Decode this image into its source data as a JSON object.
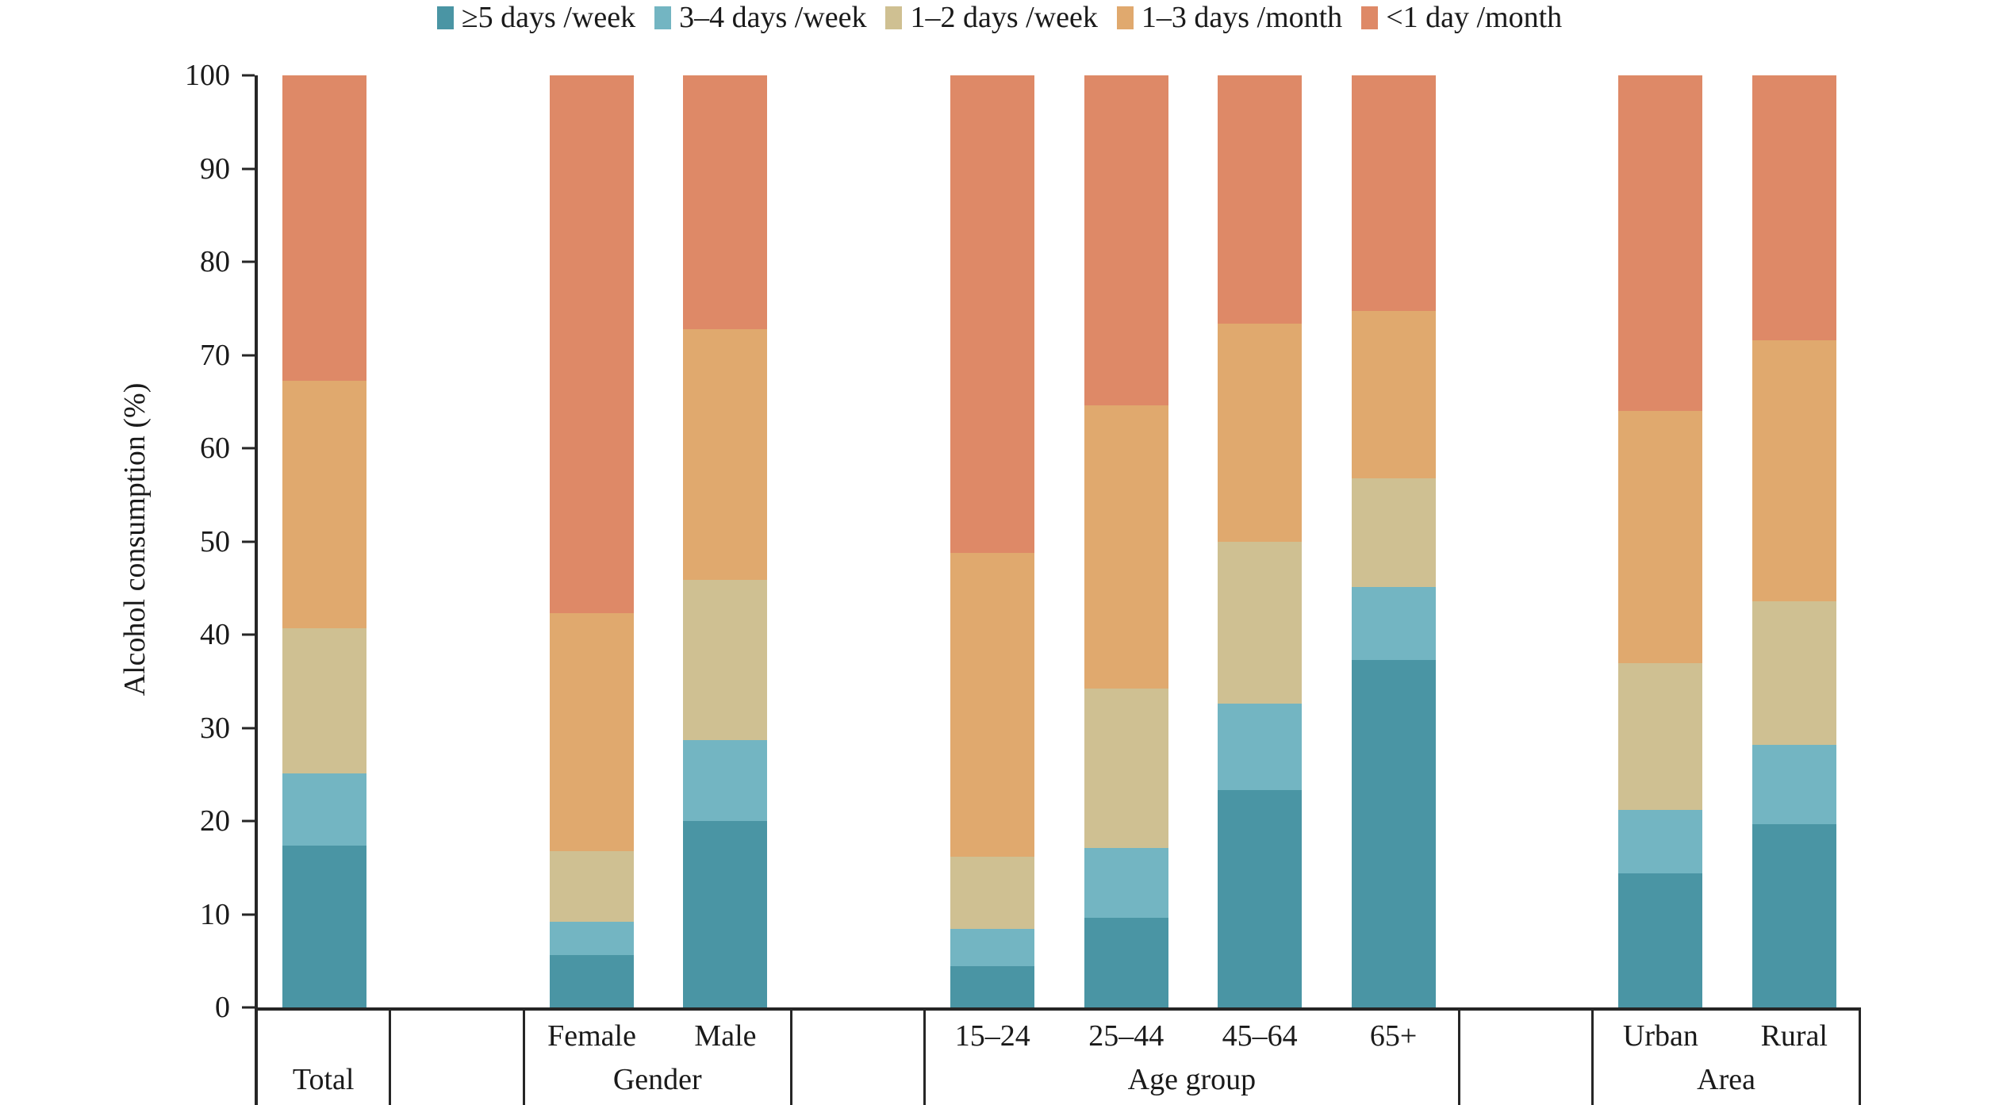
{
  "chart_data": {
    "type": "bar",
    "stacked": true,
    "title": "",
    "xlabel": "",
    "ylabel": "Alcohol consumption (%)",
    "ylim": [
      0,
      100
    ],
    "yticks": [
      0,
      10,
      20,
      30,
      40,
      50,
      60,
      70,
      80,
      90,
      100
    ],
    "grid": false,
    "legend_position": "top",
    "categories": [
      "Total",
      "Female",
      "Male",
      "15–24",
      "25–44",
      "45–64",
      "65+",
      "Urban",
      "Rural"
    ],
    "axis_groups": [
      {
        "label": "Total",
        "bar_labels": [
          ""
        ]
      },
      {
        "label": "Gender",
        "bar_labels": [
          "Female",
          "Male"
        ]
      },
      {
        "label": "Age group",
        "bar_labels": [
          "15–24",
          "25–44",
          "45–64",
          "65+"
        ]
      },
      {
        "label": "Area",
        "bar_labels": [
          "Urban",
          "Rural"
        ]
      }
    ],
    "series": [
      {
        "name": "≥5 days /week",
        "color": "#4A95A4",
        "values": [
          17.4,
          5.6,
          20.0,
          4.4,
          9.6,
          23.3,
          37.3,
          14.4,
          19.7
        ]
      },
      {
        "name": "3–4 days /week",
        "color": "#73B5C2",
        "values": [
          7.7,
          3.6,
          8.7,
          4.0,
          7.5,
          9.3,
          7.8,
          6.8,
          8.5
        ]
      },
      {
        "name": "1–2 days /week",
        "color": "#CFC092",
        "values": [
          15.6,
          7.6,
          17.2,
          7.8,
          17.1,
          17.4,
          11.7,
          15.7,
          15.4
        ]
      },
      {
        "name": "1–3 days /month",
        "color": "#E0A96E",
        "values": [
          26.5,
          25.5,
          26.9,
          32.6,
          30.4,
          23.4,
          17.9,
          27.1,
          28.0
        ]
      },
      {
        "name": "<1 day /month",
        "color": "#DE8967",
        "values": [
          32.8,
          57.7,
          27.2,
          51.2,
          35.4,
          26.6,
          25.3,
          36.0,
          28.4
        ]
      }
    ],
    "axis_color": "#262626"
  }
}
